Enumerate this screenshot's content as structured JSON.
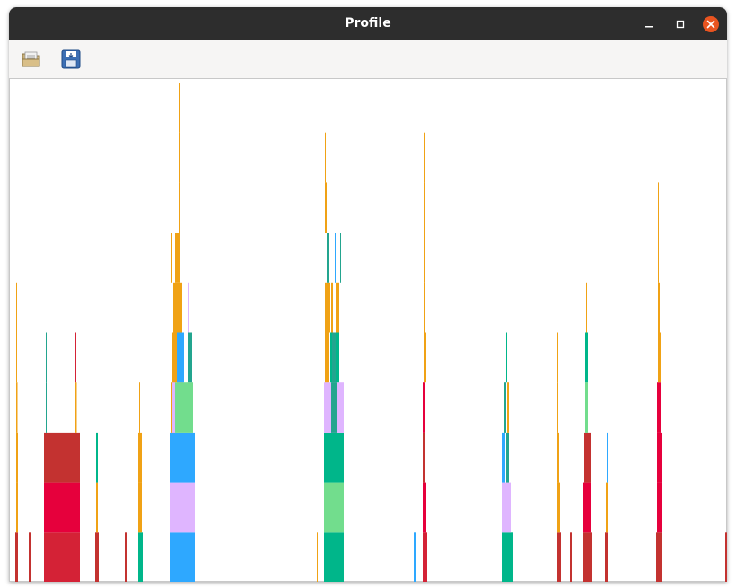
{
  "window": {
    "title": "Profile",
    "controls": [
      "minimize-icon",
      "maximize-icon",
      "close-icon"
    ],
    "close_color": "#e95420"
  },
  "toolbar": {
    "buttons": [
      {
        "icon": "open-folder-icon"
      },
      {
        "icon": "save-icon"
      }
    ]
  },
  "flame_graph": {
    "colors": {
      "red": "#c33230",
      "crimson": "#e6003c",
      "rose": "#d42236",
      "orange": "#f0a215",
      "blue": "#2ea8ff",
      "lavender": "#dfb5ff",
      "green": "#00b68a",
      "lightgreen": "#72dd8d",
      "teal": "#23a58f"
    }
  }
}
